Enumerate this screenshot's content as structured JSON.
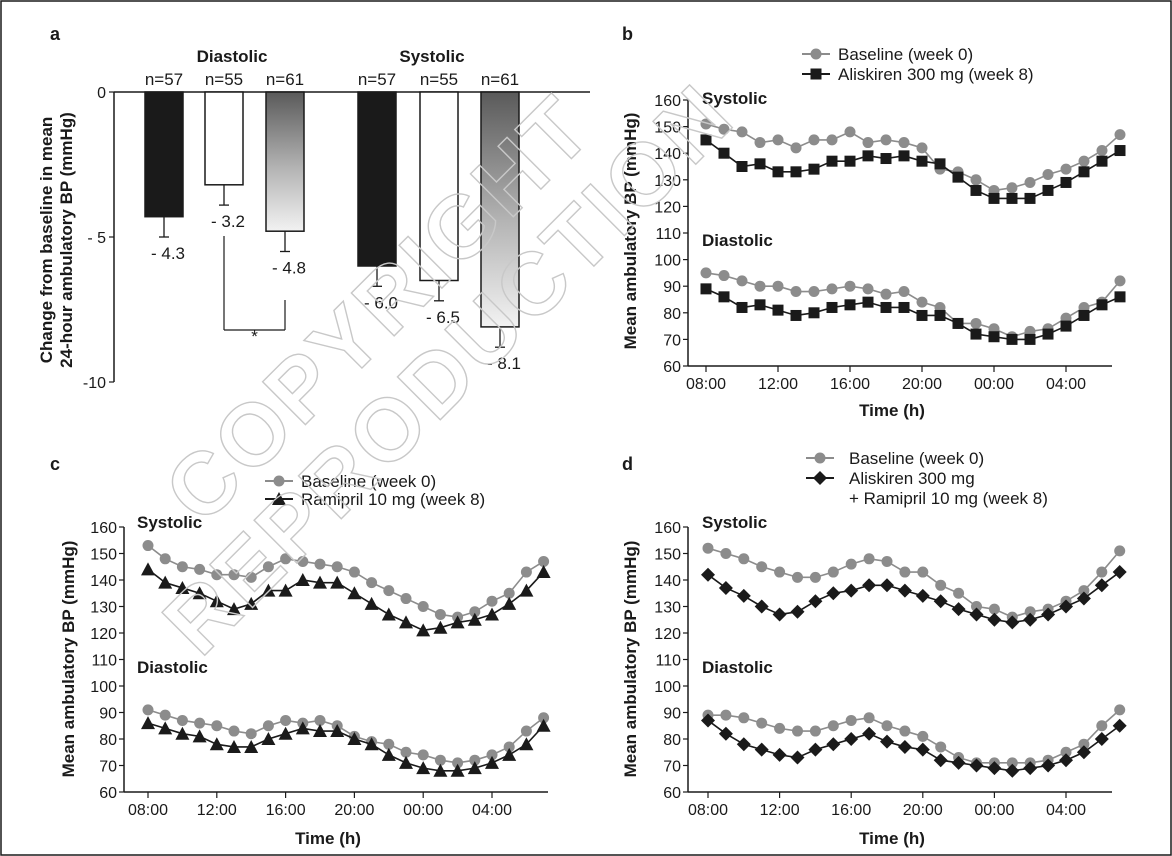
{
  "watermark": [
    "COPYRIGHT",
    "REPRODUCTION"
  ],
  "chart_data": [
    {
      "panel": "a",
      "type": "bar",
      "ylabel": [
        "Change from baseline in mean",
        "24-hour ambulatory BP (mmHg)"
      ],
      "ylim": [
        -10,
        0
      ],
      "yticks": [
        {
          "v": 0,
          "t": "0"
        },
        {
          "v": -5,
          "t": "- 5"
        },
        {
          "v": -10,
          "t": "-10"
        }
      ],
      "groups": [
        {
          "name": "Diastolic",
          "bars": [
            {
              "n": "n=57",
              "value": -4.3,
              "error": 0.7,
              "label": "- 4.3",
              "fill": "black"
            },
            {
              "n": "n=55",
              "value": -3.2,
              "error": 0.7,
              "label": "- 3.2",
              "fill": "white"
            },
            {
              "n": "n=61",
              "value": -4.8,
              "error": 0.7,
              "label": "- 4.8",
              "fill": "gradient"
            }
          ]
        },
        {
          "name": "Systolic",
          "bars": [
            {
              "n": "n=57",
              "value": -6.0,
              "error": 0.7,
              "label": "- 6.0",
              "fill": "black"
            },
            {
              "n": "n=55",
              "value": -6.5,
              "error": 0.7,
              "label": "- 6.5",
              "fill": "white"
            },
            {
              "n": "n=61",
              "value": -8.1,
              "error": 0.7,
              "label": "- 8.1",
              "fill": "gradient"
            }
          ]
        }
      ],
      "annotations": [
        "*"
      ]
    },
    {
      "panel": "b",
      "type": "line",
      "xlabel": "Time (h)",
      "ylabel": "Mean ambulatory BP (mmHg)",
      "ylim": [
        60,
        160
      ],
      "yticks": [
        60,
        70,
        80,
        90,
        100,
        110,
        120,
        130,
        140,
        150,
        160
      ],
      "xticks": [
        "08:00",
        "12:00",
        "16:00",
        "20:00",
        "00:00",
        "04:00"
      ],
      "sublabels": [
        "Systolic",
        "Diastolic"
      ],
      "series": [
        {
          "name": "Baseline (week 0)",
          "marker": "circle",
          "color": "#8c8c8c",
          "systolic": [
            151,
            149,
            148,
            144,
            145,
            142,
            145,
            145,
            148,
            144,
            145,
            144,
            142,
            134,
            133,
            130,
            126,
            127,
            129,
            132,
            134,
            137,
            141,
            147
          ],
          "diastolic": [
            95,
            94,
            92,
            90,
            90,
            88,
            88,
            89,
            90,
            89,
            87,
            88,
            84,
            82,
            76,
            76,
            74,
            71,
            73,
            74,
            78,
            82,
            84,
            92
          ]
        },
        {
          "name": "Aliskiren 300 mg (week 8)",
          "marker": "square",
          "color": "#1a1a1a",
          "systolic": [
            145,
            140,
            135,
            136,
            133,
            133,
            134,
            137,
            137,
            139,
            138,
            139,
            137,
            136,
            131,
            126,
            123,
            123,
            123,
            126,
            129,
            133,
            137,
            141
          ],
          "diastolic": [
            89,
            86,
            82,
            83,
            81,
            79,
            80,
            82,
            83,
            84,
            82,
            82,
            79,
            79,
            76,
            72,
            71,
            70,
            70,
            72,
            75,
            79,
            83,
            86
          ]
        }
      ]
    },
    {
      "panel": "c",
      "type": "line",
      "xlabel": "Time (h)",
      "ylabel": "Mean ambulatory BP (mmHg)",
      "ylim": [
        60,
        160
      ],
      "yticks": [
        60,
        70,
        80,
        90,
        100,
        110,
        120,
        130,
        140,
        150,
        160
      ],
      "xticks": [
        "08:00",
        "12:00",
        "16:00",
        "20:00",
        "00:00",
        "04:00"
      ],
      "sublabels": [
        "Systolic",
        "Diastolic"
      ],
      "series": [
        {
          "name": "Baseline (week 0)",
          "marker": "circle",
          "color": "#8c8c8c",
          "systolic": [
            153,
            148,
            145,
            144,
            142,
            142,
            141,
            145,
            148,
            147,
            146,
            145,
            143,
            139,
            136,
            133,
            130,
            127,
            126,
            128,
            132,
            135,
            143,
            147
          ],
          "diastolic": [
            91,
            89,
            87,
            86,
            85,
            83,
            82,
            85,
            87,
            86,
            87,
            85,
            81,
            79,
            78,
            75,
            74,
            72,
            71,
            72,
            74,
            77,
            83,
            88
          ]
        },
        {
          "name": "Ramipril 10 mg (week 8)",
          "marker": "triangle",
          "color": "#1a1a1a",
          "systolic": [
            144,
            139,
            137,
            135,
            132,
            129,
            131,
            136,
            136,
            140,
            139,
            139,
            135,
            131,
            127,
            124,
            121,
            122,
            124,
            125,
            127,
            131,
            136,
            143
          ],
          "diastolic": [
            86,
            84,
            82,
            81,
            78,
            77,
            77,
            80,
            82,
            84,
            83,
            83,
            80,
            78,
            74,
            71,
            69,
            68,
            68,
            69,
            71,
            74,
            78,
            85
          ]
        }
      ]
    },
    {
      "panel": "d",
      "type": "line",
      "xlabel": "Time (h)",
      "ylabel": "Mean ambulatory BP (mmHg)",
      "ylim": [
        60,
        160
      ],
      "yticks": [
        60,
        70,
        80,
        90,
        100,
        110,
        120,
        130,
        140,
        150,
        160
      ],
      "xticks": [
        "08:00",
        "12:00",
        "16:00",
        "20:00",
        "00:00",
        "04:00"
      ],
      "sublabels": [
        "Systolic",
        "Diastolic"
      ],
      "series": [
        {
          "name": "Baseline (week 0)",
          "marker": "circle",
          "color": "#8c8c8c",
          "systolic": [
            152,
            150,
            148,
            145,
            143,
            141,
            141,
            143,
            146,
            148,
            147,
            143,
            143,
            138,
            135,
            130,
            129,
            126,
            128,
            129,
            132,
            136,
            143,
            151
          ],
          "diastolic": [
            89,
            89,
            88,
            86,
            84,
            83,
            83,
            85,
            87,
            88,
            85,
            83,
            81,
            77,
            73,
            71,
            71,
            71,
            71,
            72,
            75,
            78,
            85,
            91
          ]
        },
        {
          "name": "Aliskiren  300 mg",
          "name_line2": "+ Ramipril 10 mg (week 8)",
          "marker": "diamond",
          "color": "#1a1a1a",
          "systolic": [
            142,
            137,
            134,
            130,
            127,
            128,
            132,
            135,
            136,
            138,
            138,
            136,
            134,
            132,
            129,
            127,
            125,
            124,
            125,
            127,
            130,
            133,
            138,
            143
          ],
          "diastolic": [
            87,
            82,
            78,
            76,
            74,
            73,
            76,
            78,
            80,
            82,
            79,
            77,
            76,
            72,
            71,
            70,
            69,
            68,
            69,
            70,
            72,
            75,
            80,
            85
          ]
        }
      ]
    }
  ]
}
